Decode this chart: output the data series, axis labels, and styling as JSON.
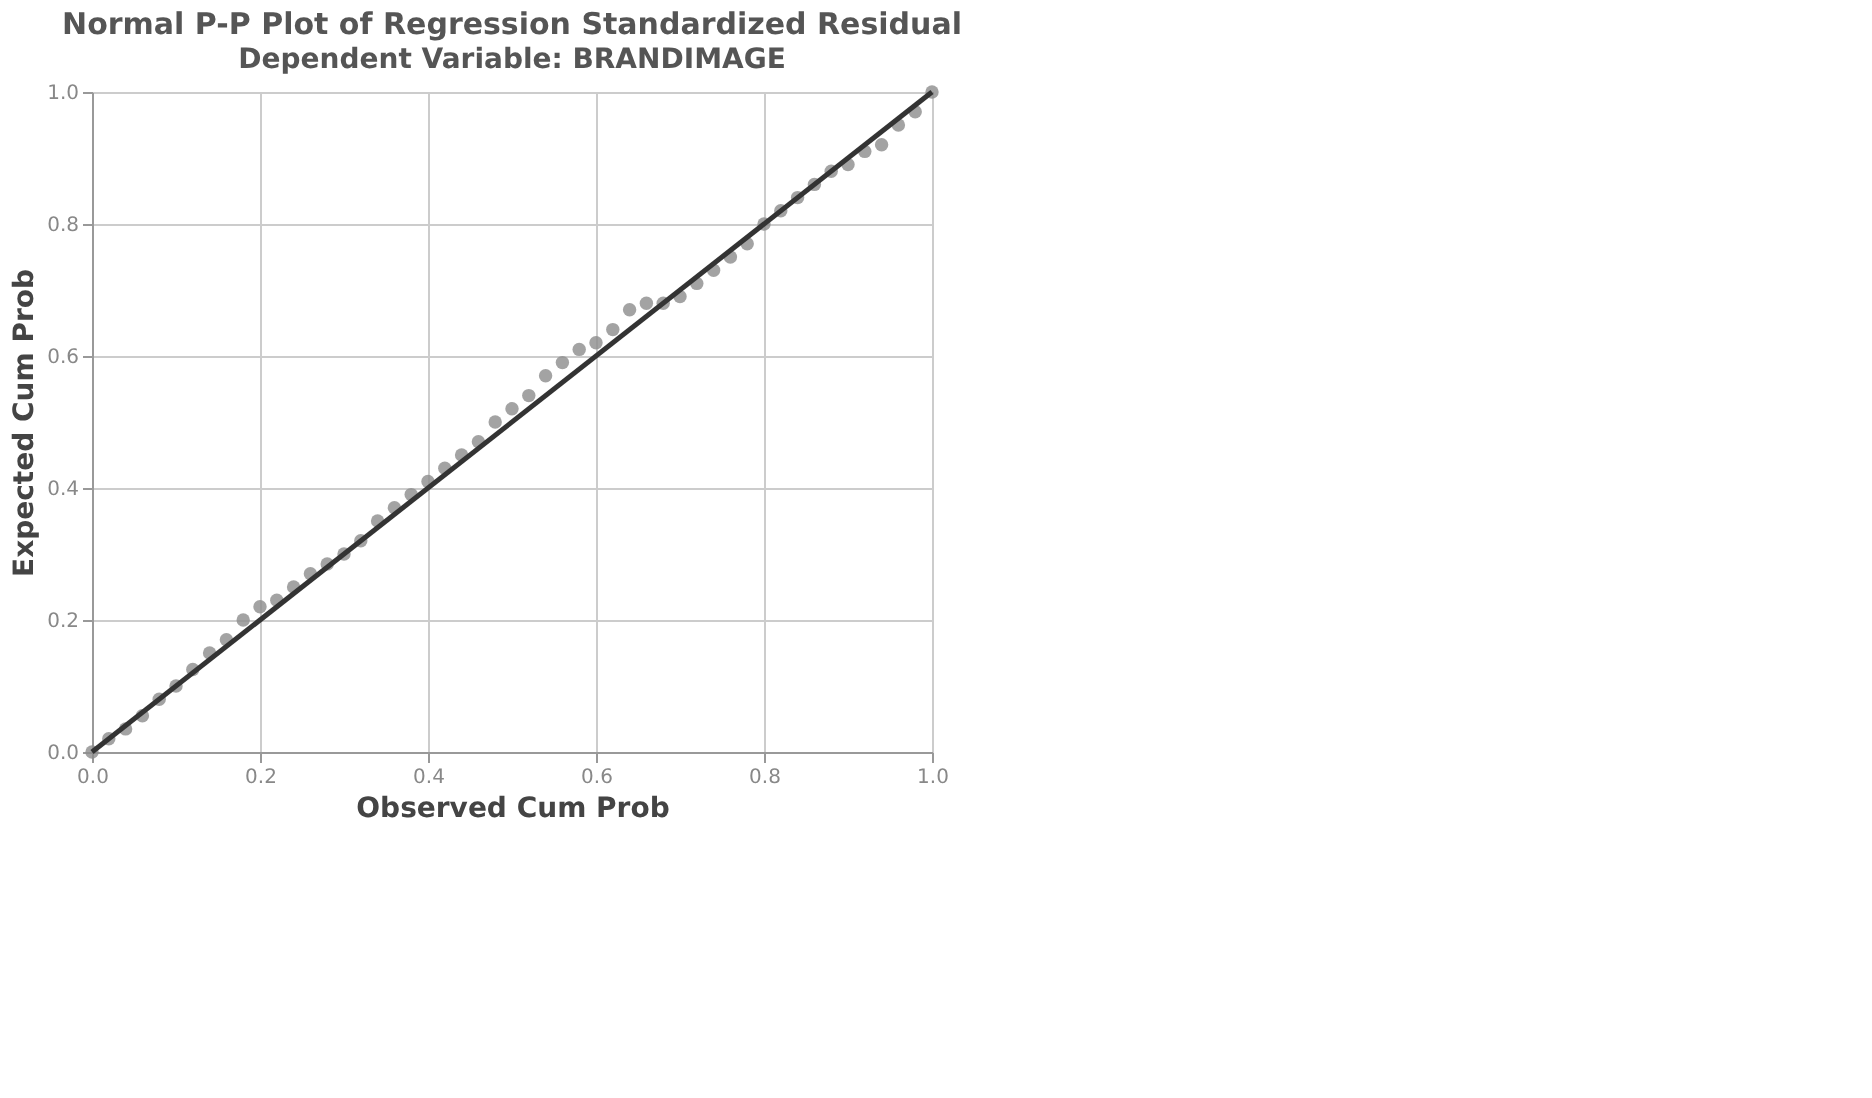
{
  "chart_data": {
    "type": "scatter",
    "title": "Normal P-P Plot of Regression Standardized Residual",
    "subtitle": "Dependent Variable: BRANDIMAGE",
    "xlabel": "Observed Cum Prob",
    "ylabel": "Expected Cum Prob",
    "xlim": [
      0,
      1
    ],
    "ylim": [
      0,
      1
    ],
    "xticks": [
      {
        "value": 0,
        "label": "0.0"
      },
      0.2,
      0.4,
      0.6,
      0.8,
      {
        "value": 1,
        "label": "1.0"
      }
    ],
    "yticks": [
      {
        "value": 0,
        "label": "0.0"
      },
      0.2,
      0.4,
      0.6,
      0.8,
      {
        "value": 1,
        "label": "1.0"
      }
    ],
    "grid": true,
    "series": [
      {
        "marker": "circle",
        "color": "#8c8c8c",
        "x": [
          0.0,
          0.02,
          0.04,
          0.06,
          0.08,
          0.1,
          0.12,
          0.14,
          0.16,
          0.18,
          0.2,
          0.22,
          0.24,
          0.26,
          0.28,
          0.3,
          0.32,
          0.34,
          0.36,
          0.38,
          0.4,
          0.42,
          0.44,
          0.46,
          0.48,
          0.5,
          0.52,
          0.54,
          0.56,
          0.58,
          0.6,
          0.62,
          0.64,
          0.66,
          0.68,
          0.7,
          0.72,
          0.74,
          0.76,
          0.78,
          0.8,
          0.82,
          0.84,
          0.86,
          0.88,
          0.9,
          0.92,
          0.94,
          0.96,
          0.98,
          1.0
        ],
        "values": [
          0.0,
          0.02,
          0.035,
          0.055,
          0.08,
          0.1,
          0.125,
          0.15,
          0.17,
          0.2,
          0.22,
          0.23,
          0.25,
          0.27,
          0.285,
          0.3,
          0.32,
          0.35,
          0.37,
          0.39,
          0.41,
          0.43,
          0.45,
          0.47,
          0.5,
          0.52,
          0.54,
          0.57,
          0.59,
          0.61,
          0.62,
          0.64,
          0.67,
          0.68,
          0.68,
          0.69,
          0.71,
          0.73,
          0.75,
          0.77,
          0.8,
          0.82,
          0.84,
          0.86,
          0.88,
          0.89,
          0.91,
          0.92,
          0.95,
          0.97,
          1.0
        ]
      },
      {
        "type": "line",
        "marker": "none",
        "color": "#333333",
        "x": [
          0,
          1
        ],
        "values": [
          0,
          1
        ]
      }
    ]
  }
}
